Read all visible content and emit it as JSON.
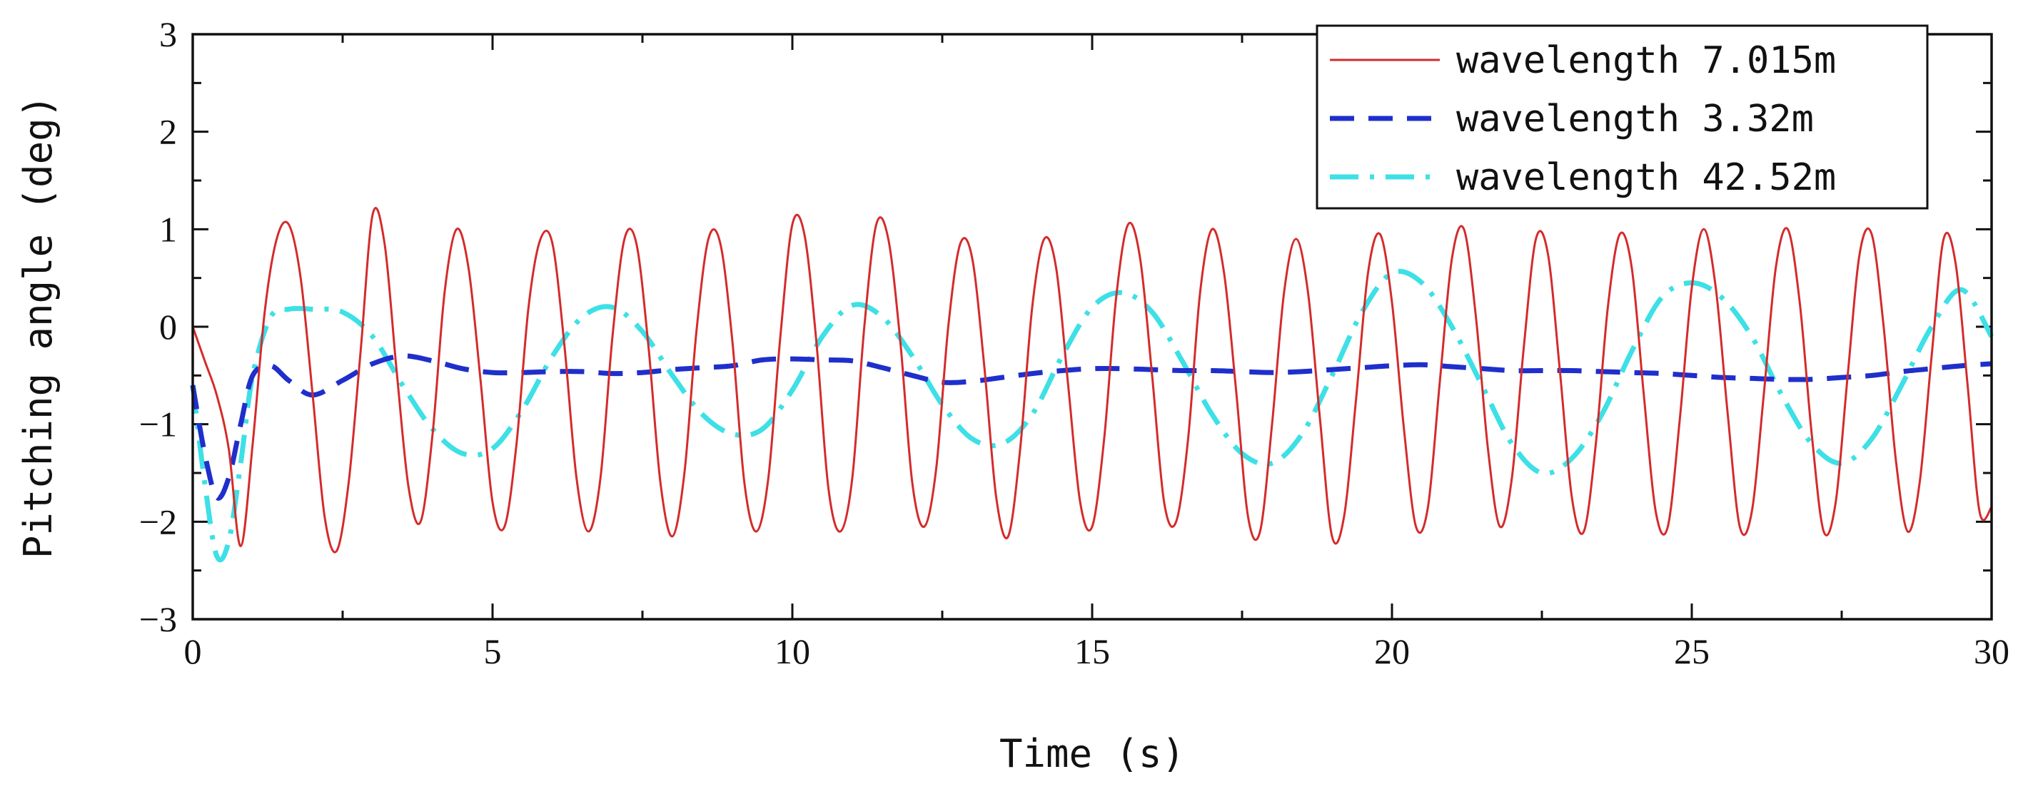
{
  "chart_data": {
    "type": "line",
    "title": "",
    "xlabel": "Time (s)",
    "ylabel": "Pitching angle (deg)",
    "xlim": [
      0,
      30
    ],
    "ylim": [
      -3,
      3
    ],
    "xticks": [
      0,
      5,
      10,
      15,
      20,
      25,
      30
    ],
    "xtick_labels": [
      "0",
      "5",
      "10",
      "15",
      "20",
      "25",
      "30"
    ],
    "yticks": [
      -3,
      -2,
      -1,
      0,
      1,
      2,
      3
    ],
    "ytick_labels": [
      "−3",
      "−2",
      "−1",
      "0",
      "1",
      "2",
      "3"
    ],
    "grid": false,
    "legend_position": "top-right",
    "series": [
      {
        "name": "wavelength 7.015m",
        "color": "#d42b2b",
        "style": "solid",
        "x": [
          0,
          0.2,
          0.4,
          0.6,
          0.8,
          1.0,
          1.2,
          1.4,
          1.6,
          1.8,
          2.0,
          2.2,
          2.4,
          2.6,
          2.8,
          3.0,
          3.2,
          3.4,
          3.6,
          3.8,
          4.0,
          4.2,
          4.4,
          4.6,
          4.8,
          5.0,
          5.2,
          5.4,
          5.6,
          5.8,
          6.0,
          6.2,
          6.4,
          6.6,
          6.8,
          7.0,
          7.2,
          7.4,
          7.6,
          7.8,
          8.0,
          8.2,
          8.4,
          8.6,
          8.8,
          9.0,
          9.2,
          9.4,
          9.6,
          9.8,
          10.0,
          10.2,
          10.4,
          10.6,
          10.8,
          11.0,
          11.2,
          11.4,
          11.6,
          11.8,
          12.0,
          12.2,
          12.4,
          12.6,
          12.8,
          13.0,
          13.2,
          13.4,
          13.6,
          13.8,
          14.0,
          14.2,
          14.4,
          14.6,
          14.8,
          15.0,
          15.2,
          15.4,
          15.6,
          15.8,
          16.0,
          16.2,
          16.4,
          16.6,
          16.8,
          17.0,
          17.2,
          17.4,
          17.6,
          17.8,
          18.0,
          18.2,
          18.4,
          18.6,
          18.8,
          19.0,
          19.2,
          19.4,
          19.6,
          19.8,
          20.0,
          20.2,
          20.4,
          20.6,
          20.8,
          21.0,
          21.2,
          21.4,
          21.6,
          21.8,
          22.0,
          22.2,
          22.4,
          22.6,
          22.8,
          23.0,
          23.2,
          23.4,
          23.6,
          23.8,
          24.0,
          24.2,
          24.4,
          24.6,
          24.8,
          25.0,
          25.2,
          25.4,
          25.6,
          25.8,
          26.0,
          26.2,
          26.4,
          26.6,
          26.8,
          27.0,
          27.2,
          27.4,
          27.6,
          27.8,
          28.0,
          28.2,
          28.4,
          28.6,
          28.8,
          29.0,
          29.2,
          29.4,
          29.6,
          29.8,
          30.0
        ],
        "values": [
          0.0,
          -0.35,
          -0.7,
          -1.25,
          -2.25,
          -1.2,
          0.15,
          0.9,
          1.05,
          0.5,
          -0.7,
          -1.95,
          -2.3,
          -1.6,
          -0.25,
          1.15,
          0.85,
          -0.45,
          -1.65,
          -2.0,
          -1.1,
          0.35,
          1.0,
          0.6,
          -0.55,
          -1.8,
          -2.05,
          -1.2,
          0.2,
          0.9,
          0.85,
          -0.2,
          -1.55,
          -2.1,
          -1.55,
          -0.1,
          0.9,
          0.85,
          -0.2,
          -1.6,
          -2.15,
          -1.5,
          -0.05,
          0.9,
          0.85,
          -0.15,
          -1.6,
          -2.1,
          -1.55,
          -0.1,
          1.05,
          0.95,
          -0.15,
          -1.65,
          -2.1,
          -1.55,
          0.0,
          1.05,
          0.9,
          -0.15,
          -1.6,
          -2.05,
          -1.45,
          0.0,
          0.85,
          0.7,
          -0.4,
          -1.75,
          -2.15,
          -1.25,
          0.2,
          0.9,
          0.6,
          -0.6,
          -1.8,
          -2.05,
          -1.15,
          0.3,
          1.05,
          0.7,
          -0.5,
          -1.8,
          -2.0,
          -1.15,
          0.35,
          1.0,
          0.55,
          -0.65,
          -1.95,
          -2.1,
          -1.0,
          0.35,
          0.9,
          0.35,
          -0.95,
          -2.15,
          -1.95,
          -0.75,
          0.55,
          0.95,
          0.25,
          -1.05,
          -2.05,
          -1.85,
          -0.55,
          0.7,
          1.0,
          0.1,
          -1.25,
          -2.05,
          -1.55,
          -0.2,
          0.9,
          0.75,
          -0.45,
          -1.75,
          -2.1,
          -1.2,
          0.2,
          0.95,
          0.6,
          -0.7,
          -1.9,
          -2.05,
          -0.95,
          0.4,
          1.0,
          0.4,
          -0.9,
          -2.05,
          -1.9,
          -0.7,
          0.6,
          1.0,
          0.25,
          -1.1,
          -2.1,
          -1.8,
          -0.5,
          0.75,
          0.95,
          0.0,
          -1.35,
          -2.1,
          -1.6,
          -0.3,
          0.9,
          0.65,
          -0.6,
          -1.9,
          -1.85
        ]
      },
      {
        "name": "wavelength 3.32m",
        "color": "#1f2fcc",
        "style": "dashed",
        "x": [
          0,
          0.2,
          0.4,
          0.6,
          0.8,
          1.0,
          1.3,
          1.6,
          2.0,
          2.5,
          3.0,
          3.5,
          4.0,
          4.5,
          5.0,
          5.5,
          6.0,
          6.5,
          7.0,
          7.5,
          8.0,
          8.5,
          9.0,
          9.5,
          10.0,
          10.5,
          11.0,
          11.5,
          12.0,
          12.5,
          13.0,
          13.5,
          14.0,
          14.5,
          15.0,
          15.5,
          16.0,
          16.5,
          17.0,
          17.5,
          18.0,
          18.5,
          19.0,
          19.5,
          20.0,
          20.5,
          21.0,
          21.5,
          22.0,
          22.5,
          23.0,
          23.5,
          24.0,
          24.5,
          25.0,
          25.5,
          26.0,
          26.5,
          27.0,
          27.5,
          28.0,
          28.5,
          29.0,
          29.5,
          30.0
        ],
        "values": [
          -0.6,
          -1.3,
          -1.75,
          -1.55,
          -1.0,
          -0.5,
          -0.4,
          -0.55,
          -0.7,
          -0.55,
          -0.38,
          -0.3,
          -0.35,
          -0.43,
          -0.47,
          -0.47,
          -0.46,
          -0.46,
          -0.48,
          -0.47,
          -0.44,
          -0.42,
          -0.4,
          -0.34,
          -0.33,
          -0.34,
          -0.35,
          -0.42,
          -0.5,
          -0.57,
          -0.56,
          -0.52,
          -0.48,
          -0.45,
          -0.43,
          -0.43,
          -0.44,
          -0.45,
          -0.45,
          -0.46,
          -0.47,
          -0.46,
          -0.44,
          -0.42,
          -0.4,
          -0.39,
          -0.41,
          -0.43,
          -0.45,
          -0.45,
          -0.45,
          -0.46,
          -0.47,
          -0.48,
          -0.5,
          -0.52,
          -0.53,
          -0.54,
          -0.54,
          -0.52,
          -0.5,
          -0.46,
          -0.43,
          -0.4,
          -0.38
        ]
      },
      {
        "name": "wavelength 42.52m",
        "color": "#3de0e6",
        "style": "dashdot",
        "x": [
          0,
          0.2,
          0.4,
          0.6,
          0.8,
          1.0,
          1.3,
          1.6,
          2.0,
          2.5,
          3.0,
          3.5,
          4.0,
          4.5,
          5.0,
          5.5,
          6.0,
          6.5,
          7.0,
          7.5,
          8.0,
          8.5,
          9.0,
          9.5,
          10.0,
          10.5,
          11.0,
          11.5,
          12.0,
          12.5,
          13.0,
          13.5,
          14.0,
          14.5,
          15.0,
          15.5,
          16.0,
          16.5,
          17.0,
          17.5,
          18.0,
          18.5,
          19.0,
          19.5,
          20.0,
          20.5,
          21.0,
          21.5,
          22.0,
          22.5,
          23.0,
          23.5,
          24.0,
          24.5,
          25.0,
          25.5,
          26.0,
          26.5,
          27.0,
          27.5,
          28.0,
          28.5,
          29.0,
          29.5,
          30.0
        ],
        "values": [
          -0.6,
          -1.6,
          -2.35,
          -2.2,
          -1.4,
          -0.5,
          0.1,
          0.18,
          0.18,
          0.15,
          -0.1,
          -0.6,
          -1.05,
          -1.3,
          -1.25,
          -0.85,
          -0.3,
          0.1,
          0.2,
          -0.05,
          -0.5,
          -0.9,
          -1.1,
          -1.05,
          -0.65,
          -0.1,
          0.22,
          0.1,
          -0.3,
          -0.8,
          -1.15,
          -1.2,
          -0.9,
          -0.3,
          0.2,
          0.35,
          0.15,
          -0.35,
          -0.9,
          -1.3,
          -1.4,
          -1.1,
          -0.5,
          0.15,
          0.55,
          0.45,
          0.0,
          -0.6,
          -1.2,
          -1.5,
          -1.35,
          -0.9,
          -0.25,
          0.3,
          0.45,
          0.3,
          -0.1,
          -0.7,
          -1.2,
          -1.4,
          -1.15,
          -0.6,
          0.0,
          0.38,
          -0.1
        ]
      }
    ]
  }
}
